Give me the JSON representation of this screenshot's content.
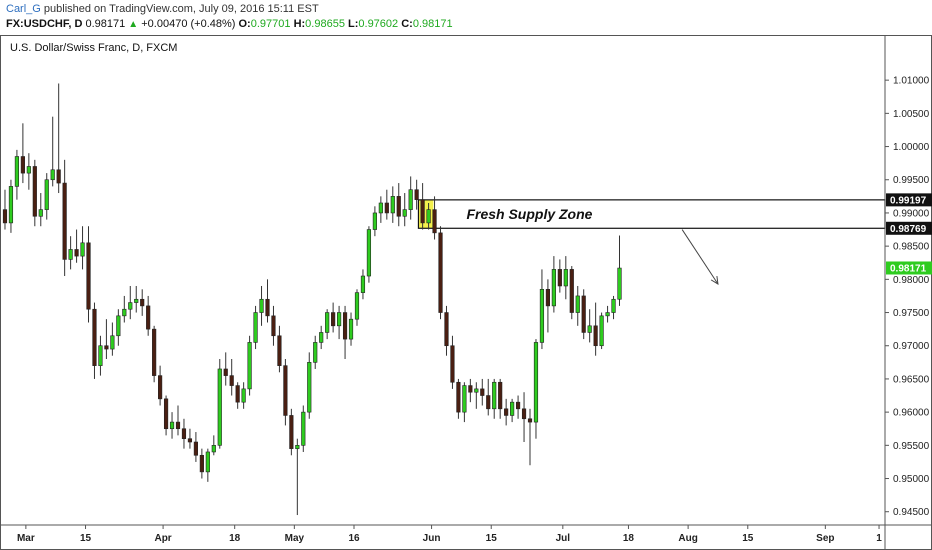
{
  "header": {
    "author": "Carl_G",
    "published_text": "published on TradingView.com, July 09, 2016 15:11 EST",
    "symbol": "FX:USDCHF, D",
    "last": "0.98171",
    "change": "+0.00470 (+0.48%)",
    "o_label": "O:",
    "o_value": "0.97701",
    "h_label": "H:",
    "h_value": "0.98655",
    "l_label": "L:",
    "l_value": "0.97602",
    "c_label": "C:",
    "c_value": "0.98171"
  },
  "colors": {
    "bull": "#2ecc1f",
    "bear": "#4a1f12",
    "zone_fill": "#f2ee3a",
    "last_badge": "#2ecc1f",
    "level_badge": "#111111"
  },
  "chart_data": {
    "type": "candlestick",
    "title": "U.S. Dollar/Swiss Franc, D, FXCM",
    "y_range": [
      0.943,
      1.0165
    ],
    "y_ticks": [
      "1.01000",
      "1.00500",
      "1.00000",
      "0.99500",
      "0.99000",
      "0.98500",
      "0.98000",
      "0.97500",
      "0.97000",
      "0.96500",
      "0.96000",
      "0.95500",
      "0.95000",
      "0.94500"
    ],
    "x_ticks": [
      {
        "label": "Mar",
        "index": 3.5
      },
      {
        "label": "15",
        "index": 13.5
      },
      {
        "label": "Apr",
        "index": 26.5
      },
      {
        "label": "18",
        "index": 38.5
      },
      {
        "label": "May",
        "index": 48.5
      },
      {
        "label": "16",
        "index": 58.5
      },
      {
        "label": "Jun",
        "index": 71.5
      },
      {
        "label": "15",
        "index": 81.5
      },
      {
        "label": "Jul",
        "index": 93.5
      },
      {
        "label": "18",
        "index": 104.5
      },
      {
        "label": "Aug",
        "index": 114.5
      },
      {
        "label": "15",
        "index": 124.5
      },
      {
        "label": "Sep",
        "index": 137.5
      },
      {
        "label": "1",
        "index": 146.5
      }
    ],
    "x_slots": 148,
    "candles": [
      [
        0.9905,
        0.9935,
        0.9875,
        0.9885
      ],
      [
        0.9885,
        0.995,
        0.987,
        0.994
      ],
      [
        0.994,
        0.9995,
        0.992,
        0.9985
      ],
      [
        0.9985,
        1.0035,
        0.9945,
        0.996
      ],
      [
        0.996,
        0.999,
        0.9935,
        0.997
      ],
      [
        0.997,
        0.998,
        0.988,
        0.9895
      ],
      [
        0.9895,
        0.993,
        0.988,
        0.9905
      ],
      [
        0.9905,
        0.996,
        0.989,
        0.995
      ],
      [
        0.995,
        1.0045,
        0.994,
        0.9965
      ],
      [
        0.9965,
        1.0095,
        0.993,
        0.9945
      ],
      [
        0.9945,
        0.998,
        0.9805,
        0.983
      ],
      [
        0.983,
        0.9865,
        0.9815,
        0.9845
      ],
      [
        0.9845,
        0.9875,
        0.9825,
        0.9835
      ],
      [
        0.9835,
        0.988,
        0.9815,
        0.9855
      ],
      [
        0.9855,
        0.988,
        0.9735,
        0.9755
      ],
      [
        0.9755,
        0.9765,
        0.965,
        0.967
      ],
      [
        0.967,
        0.9715,
        0.9655,
        0.97
      ],
      [
        0.97,
        0.974,
        0.968,
        0.9695
      ],
      [
        0.9695,
        0.9735,
        0.9685,
        0.9715
      ],
      [
        0.9715,
        0.9755,
        0.97,
        0.9745
      ],
      [
        0.9745,
        0.9775,
        0.9735,
        0.9755
      ],
      [
        0.9755,
        0.979,
        0.974,
        0.9765
      ],
      [
        0.9765,
        0.979,
        0.975,
        0.977
      ],
      [
        0.977,
        0.9785,
        0.9745,
        0.976
      ],
      [
        0.976,
        0.9775,
        0.9715,
        0.9725
      ],
      [
        0.9725,
        0.973,
        0.9645,
        0.9655
      ],
      [
        0.9655,
        0.967,
        0.961,
        0.962
      ],
      [
        0.962,
        0.9625,
        0.9565,
        0.9575
      ],
      [
        0.9575,
        0.96,
        0.956,
        0.9585
      ],
      [
        0.9585,
        0.961,
        0.9565,
        0.9575
      ],
      [
        0.9575,
        0.959,
        0.9545,
        0.956
      ],
      [
        0.956,
        0.9575,
        0.9545,
        0.9555
      ],
      [
        0.9555,
        0.957,
        0.9525,
        0.9535
      ],
      [
        0.9535,
        0.9545,
        0.95,
        0.951
      ],
      [
        0.951,
        0.9545,
        0.9495,
        0.954
      ],
      [
        0.954,
        0.9565,
        0.9535,
        0.955
      ],
      [
        0.955,
        0.968,
        0.9545,
        0.9665
      ],
      [
        0.9665,
        0.969,
        0.964,
        0.9655
      ],
      [
        0.9655,
        0.968,
        0.9625,
        0.964
      ],
      [
        0.964,
        0.9645,
        0.9605,
        0.9615
      ],
      [
        0.9615,
        0.9645,
        0.9605,
        0.9635
      ],
      [
        0.9635,
        0.9715,
        0.9625,
        0.9705
      ],
      [
        0.9705,
        0.976,
        0.9695,
        0.975
      ],
      [
        0.975,
        0.979,
        0.973,
        0.977
      ],
      [
        0.977,
        0.98,
        0.9735,
        0.9745
      ],
      [
        0.9745,
        0.976,
        0.97,
        0.9715
      ],
      [
        0.9715,
        0.973,
        0.966,
        0.967
      ],
      [
        0.967,
        0.968,
        0.958,
        0.9595
      ],
      [
        0.9595,
        0.9605,
        0.9535,
        0.9545
      ],
      [
        0.9545,
        0.956,
        0.9445,
        0.955
      ],
      [
        0.955,
        0.961,
        0.954,
        0.96
      ],
      [
        0.96,
        0.969,
        0.959,
        0.9675
      ],
      [
        0.9675,
        0.9715,
        0.9665,
        0.9705
      ],
      [
        0.9705,
        0.973,
        0.9695,
        0.972
      ],
      [
        0.972,
        0.9755,
        0.971,
        0.975
      ],
      [
        0.975,
        0.9765,
        0.972,
        0.973
      ],
      [
        0.973,
        0.976,
        0.971,
        0.975
      ],
      [
        0.975,
        0.976,
        0.968,
        0.971
      ],
      [
        0.971,
        0.975,
        0.97,
        0.974
      ],
      [
        0.974,
        0.9785,
        0.973,
        0.978
      ],
      [
        0.978,
        0.9815,
        0.977,
        0.9805
      ],
      [
        0.9805,
        0.988,
        0.9795,
        0.9875
      ],
      [
        0.9875,
        0.991,
        0.9865,
        0.99
      ],
      [
        0.99,
        0.9925,
        0.9885,
        0.9915
      ],
      [
        0.9915,
        0.9935,
        0.989,
        0.99
      ],
      [
        0.99,
        0.994,
        0.9885,
        0.9925
      ],
      [
        0.9925,
        0.9945,
        0.988,
        0.9895
      ],
      [
        0.9895,
        0.993,
        0.988,
        0.9905
      ],
      [
        0.9905,
        0.9955,
        0.989,
        0.9935
      ],
      [
        0.9935,
        0.995,
        0.9905,
        0.992
      ],
      [
        0.992,
        0.9945,
        0.9875,
        0.9885
      ],
      [
        0.9885,
        0.9915,
        0.9875,
        0.9905
      ],
      [
        0.9905,
        0.9925,
        0.986,
        0.987
      ],
      [
        0.987,
        0.988,
        0.974,
        0.975
      ],
      [
        0.975,
        0.976,
        0.9685,
        0.97
      ],
      [
        0.97,
        0.9715,
        0.9635,
        0.9645
      ],
      [
        0.9645,
        0.965,
        0.959,
        0.96
      ],
      [
        0.96,
        0.9645,
        0.9585,
        0.964
      ],
      [
        0.964,
        0.965,
        0.9615,
        0.963
      ],
      [
        0.963,
        0.9645,
        0.9605,
        0.9635
      ],
      [
        0.9635,
        0.965,
        0.961,
        0.9625
      ],
      [
        0.9625,
        0.965,
        0.9595,
        0.9605
      ],
      [
        0.9605,
        0.965,
        0.959,
        0.9645
      ],
      [
        0.9645,
        0.965,
        0.959,
        0.9605
      ],
      [
        0.9605,
        0.962,
        0.958,
        0.9595
      ],
      [
        0.9595,
        0.962,
        0.9585,
        0.9615
      ],
      [
        0.9615,
        0.9625,
        0.959,
        0.9605
      ],
      [
        0.9605,
        0.963,
        0.9555,
        0.959
      ],
      [
        0.959,
        0.9605,
        0.952,
        0.9585
      ],
      [
        0.9585,
        0.971,
        0.956,
        0.9705
      ],
      [
        0.9705,
        0.9815,
        0.9695,
        0.9785
      ],
      [
        0.9785,
        0.98,
        0.972,
        0.976
      ],
      [
        0.976,
        0.9835,
        0.975,
        0.9815
      ],
      [
        0.9815,
        0.983,
        0.978,
        0.979
      ],
      [
        0.979,
        0.9835,
        0.977,
        0.9815
      ],
      [
        0.9815,
        0.982,
        0.974,
        0.975
      ],
      [
        0.975,
        0.979,
        0.973,
        0.9775
      ],
      [
        0.9775,
        0.9785,
        0.971,
        0.972
      ],
      [
        0.972,
        0.9755,
        0.9705,
        0.973
      ],
      [
        0.973,
        0.9765,
        0.9685,
        0.97
      ],
      [
        0.97,
        0.975,
        0.9695,
        0.9745
      ],
      [
        0.9745,
        0.976,
        0.9735,
        0.975
      ],
      [
        0.975,
        0.9775,
        0.974,
        0.977
      ],
      [
        0.977,
        0.9866,
        0.976,
        0.9817
      ]
    ],
    "zone": {
      "label": "Fresh Supply Zone",
      "top": 0.99197,
      "bottom": 0.98769,
      "start_index": 70
    },
    "level_badges": [
      "0.99197",
      "0.98769"
    ],
    "last_price": "0.98171",
    "last_value": 0.98171,
    "arrow": {
      "from_index": 113.5,
      "from_value": 0.9875,
      "to_index": 119.5,
      "to_value": 0.9793
    }
  }
}
